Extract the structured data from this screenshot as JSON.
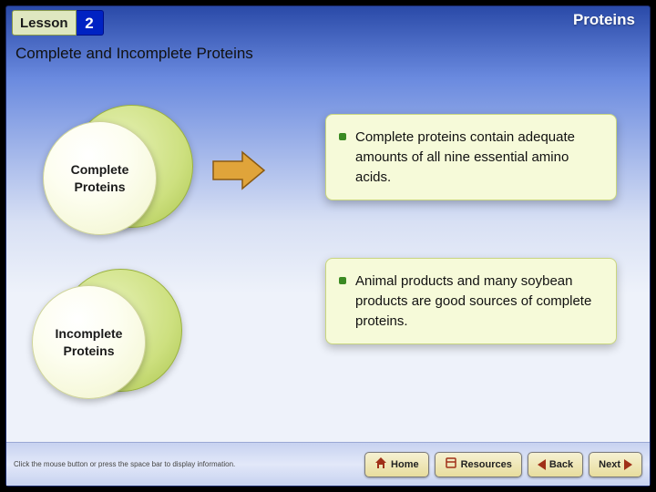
{
  "header": {
    "lesson_word": "Lesson",
    "lesson_number": "2",
    "chapter_title": "Proteins"
  },
  "subtitle": "Complete and Incomplete Proteins",
  "circles": {
    "complete": "Complete\nProteins",
    "incomplete": "Incomplete\nProteins"
  },
  "bullets": {
    "b1": "Complete proteins contain adequate amounts of all nine essential amino acids.",
    "b2": "Animal products and many soybean products are good sources of complete proteins."
  },
  "nav": {
    "hint": "Click the mouse button or press the space bar to display information.",
    "home": "Home",
    "resources": "Resources",
    "back": "Back",
    "next": "Next"
  },
  "colors": {
    "accent_blue": "#0022c3",
    "circle_gradient_light": "#fdfef0",
    "circle_gradient_dark": "#cde07f",
    "box_fill": "#f6fad9",
    "bullet_dot": "#3a8a22",
    "arrow_fill": "#cc8a1a",
    "nav_btn_bg": "#e8dd9e",
    "nav_tri": "#a03018"
  }
}
